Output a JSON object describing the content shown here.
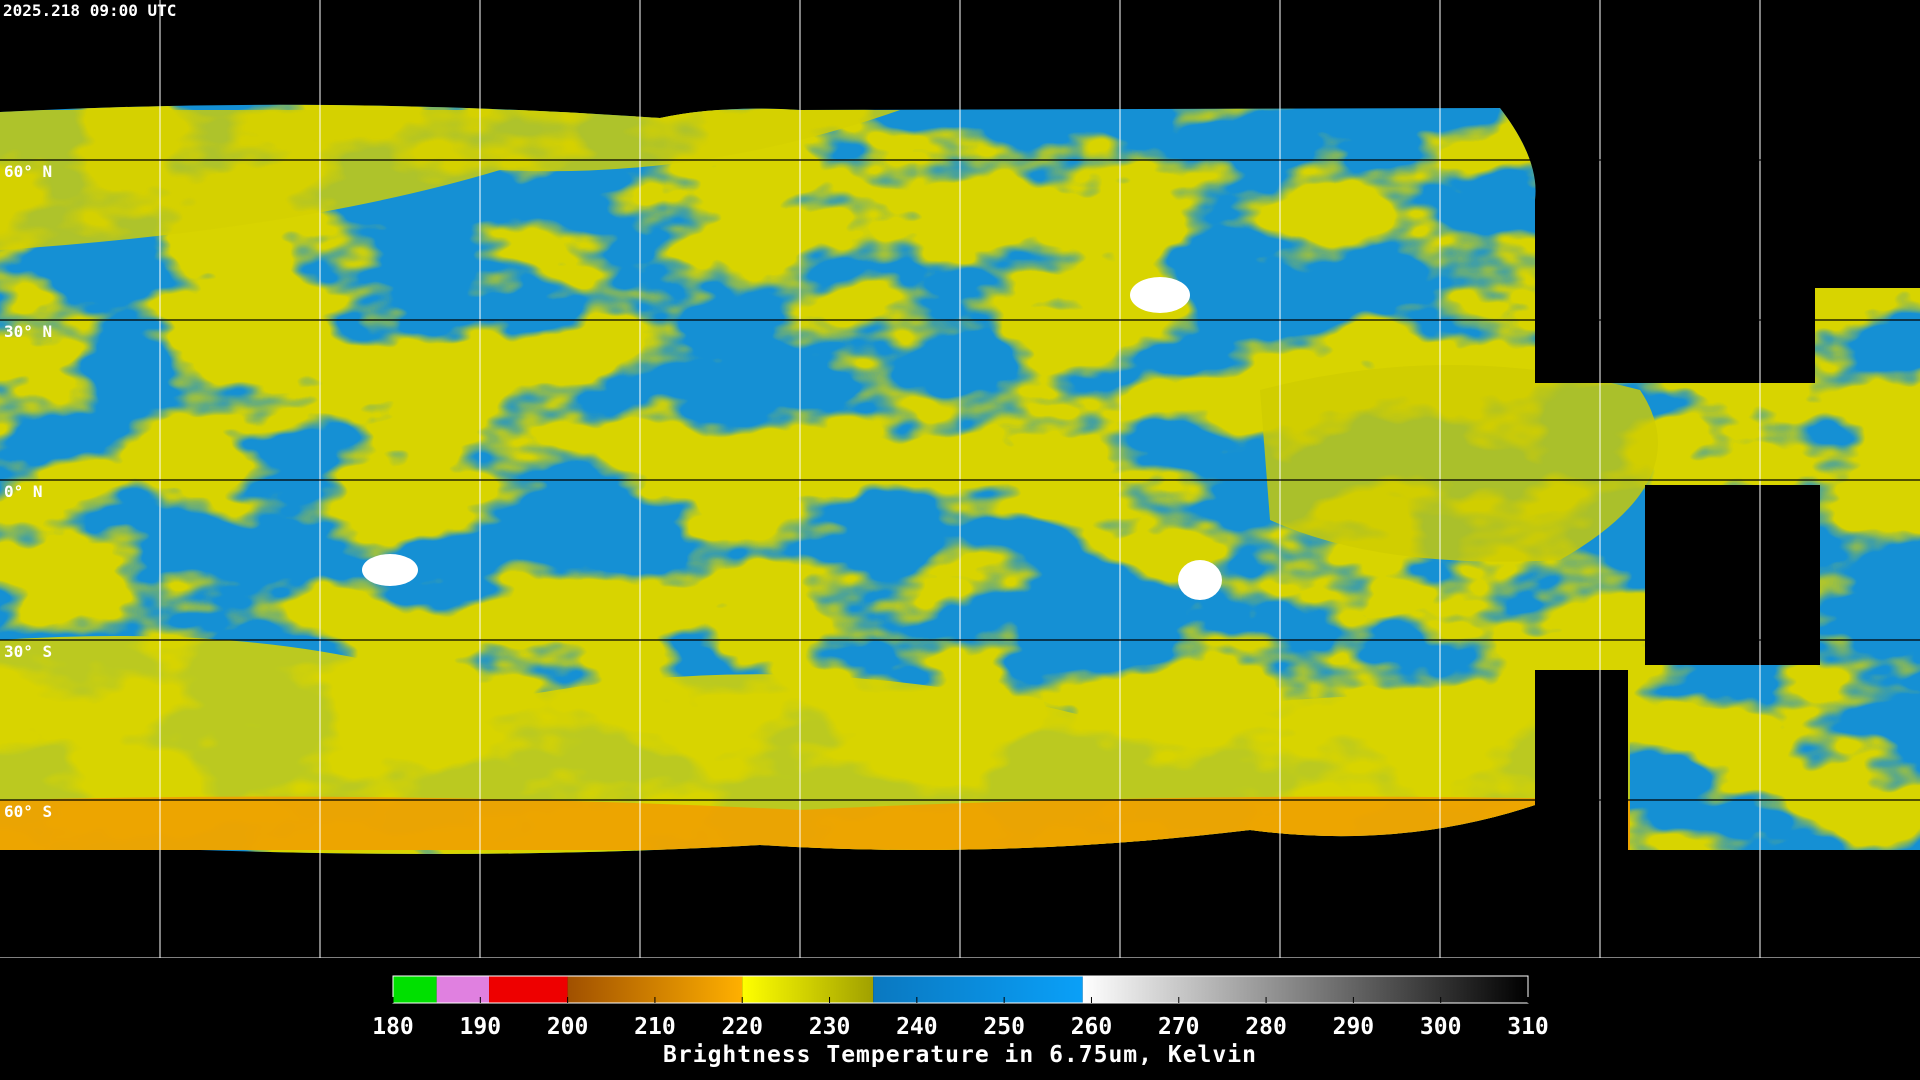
{
  "timestamp": "2025.218 09:00 UTC",
  "latitudes": [
    {
      "value": 60,
      "label": "60° N"
    },
    {
      "value": 30,
      "label": "30° N"
    },
    {
      "value": 0,
      "label": "0° N"
    },
    {
      "value": -30,
      "label": "30° S"
    },
    {
      "value": -60,
      "label": "60° S"
    }
  ],
  "colorbar": {
    "title": "Brightness Temperature in 6.75um, Kelvin",
    "range": [
      180,
      310
    ],
    "ticks": [
      180,
      190,
      200,
      210,
      220,
      230,
      240,
      250,
      260,
      270,
      280,
      290,
      300,
      310
    ],
    "segments": [
      {
        "from": 180,
        "to": 185,
        "colors": [
          "#00e000",
          "#00e000"
        ]
      },
      {
        "from": 185,
        "to": 191,
        "colors": [
          "#e080e0",
          "#e080e0"
        ]
      },
      {
        "from": 191,
        "to": 200,
        "colors": [
          "#ee0000",
          "#ee0000"
        ]
      },
      {
        "from": 200,
        "to": 220,
        "colors": [
          "#a05000",
          "#ffb000"
        ]
      },
      {
        "from": 220,
        "to": 235,
        "colors": [
          "#ffff00",
          "#a0a000"
        ]
      },
      {
        "from": 235,
        "to": 259,
        "colors": [
          "#0a78c0",
          "#0aa0f8"
        ]
      },
      {
        "from": 259,
        "to": 310,
        "colors": [
          "#ffffff",
          "#000000"
        ]
      }
    ]
  }
}
